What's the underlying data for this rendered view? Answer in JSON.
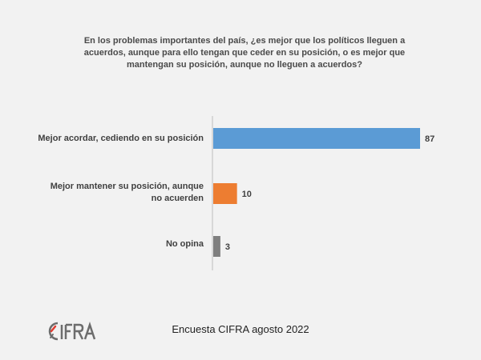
{
  "question": "En los problemas importantes del país, ¿es mejor que los políticos lleguen a acuerdos, aunque para ello tengan que ceder en su posición, o es mejor que mantengan su posición, aunque no lleguen a acuerdos?",
  "chart_data": {
    "type": "bar",
    "orientation": "horizontal",
    "title": "En los problemas importantes del país, ¿es mejor que los políticos lleguen a acuerdos, aunque para ello tengan que ceder en su posición, o es mejor que mantengan su posición, aunque no lleguen a acuerdos?",
    "categories": [
      "Mejor acordar, cediendo en su posición",
      "Mejor mantener su posición, aunque no acuerden",
      "No opina"
    ],
    "values": [
      87,
      10,
      3
    ],
    "data_labels": [
      "87",
      "10",
      "3"
    ],
    "colors": [
      "#5b9bd5",
      "#ed7d31",
      "#7f7f7f"
    ],
    "xlim": [
      0,
      87
    ],
    "grid": false,
    "legend": "none"
  },
  "footer": {
    "source": "Encuesta CIFRA agosto 2022"
  },
  "logo": {
    "text": "CIFRA",
    "colors": {
      "text": "#6d6d6d",
      "accent": "#e03c31"
    }
  }
}
